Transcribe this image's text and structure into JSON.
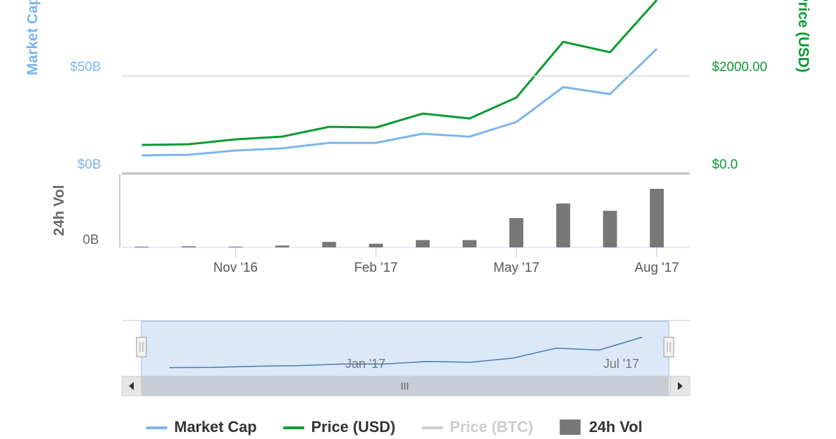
{
  "chart_data": {
    "type": "line",
    "categories": [
      null,
      null,
      "Nov '16",
      null,
      null,
      "Feb '17",
      null,
      null,
      "May '17",
      null,
      null,
      "Aug '17"
    ],
    "series": [
      {
        "name": "Market Cap",
        "color": "#7cb5ec",
        "axis": "y",
        "values": [
          9.3,
          9.6,
          11.8,
          12.9,
          15.7,
          15.7,
          20.4,
          18.9,
          26.4,
          44.3,
          40.7,
          63.9
        ]
      },
      {
        "name": "Price (USD)",
        "color": "#0a9a30",
        "axis": "y2",
        "values": [
          586,
          600,
          700,
          757,
          957,
          943,
          1229,
          1129,
          1557,
          2700,
          2486,
          3557
        ]
      },
      {
        "name": "Price (BTC)",
        "color": "#cccccc",
        "axis": "y2",
        "values": [
          null,
          null,
          null,
          null,
          null,
          null,
          null,
          null,
          null,
          null,
          null,
          null
        ]
      },
      {
        "name": "24h Vol",
        "color": "#777777",
        "type": "bar",
        "axis": "y3",
        "values": [
          0.02,
          0.03,
          0.02,
          0.05,
          0.15,
          0.1,
          0.2,
          0.2,
          0.8,
          1.2,
          1.0,
          1.6
        ]
      }
    ],
    "ylabel": "Market Cap",
    "y2label": "Price (USD)",
    "y3label": "24h Vol",
    "ylim": [
      0,
      100
    ],
    "yticks": [
      {
        "value": 0,
        "label": "$0B"
      },
      {
        "value": 50,
        "label": "$50B"
      }
    ],
    "y2lim": [
      0,
      4000
    ],
    "y2ticks": [
      {
        "value": 0,
        "label": "$0.0"
      },
      {
        "value": 2000,
        "label": "$2000.00"
      }
    ],
    "y3lim": [
      0,
      2
    ],
    "y3ticks": [
      {
        "value": 0,
        "label": "0B"
      }
    ],
    "grid": true,
    "navigator": {
      "categories": [
        null,
        null,
        null,
        null,
        "Jan '17",
        null,
        null,
        null,
        null,
        null,
        "Jul '17",
        null
      ]
    }
  }
}
